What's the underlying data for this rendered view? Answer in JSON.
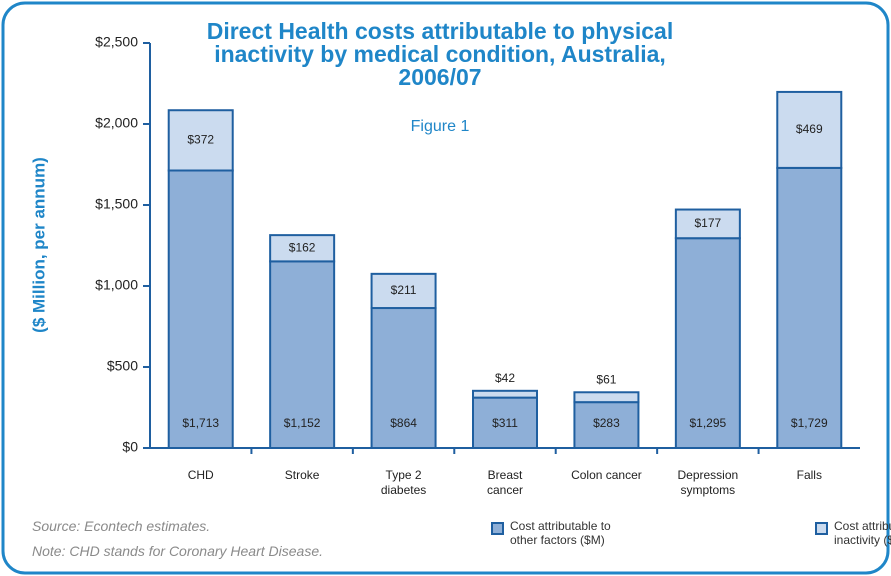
{
  "chart_data": {
    "type": "stacked_bar",
    "title": "Direct Health costs attributable to physical inactivity by medical condition, Australia, 2006/07",
    "subtitle": "Figure 1",
    "y_label": "($ Million, per annum)",
    "categories": [
      "CHD",
      "Stroke",
      "Type 2 diabetes",
      "Breast cancer",
      "Colon cancer",
      "Depression symptoms",
      "Falls"
    ],
    "series": [
      {
        "name": "Cost attributable to other factors ($M)",
        "color": "#8eafd7",
        "values": [
          1713,
          1152,
          864,
          311,
          283,
          1295,
          1729
        ],
        "value_labels": [
          "$1,713",
          "$1,152",
          "$864",
          "$311",
          "$283",
          "$1,295",
          "$1,729"
        ]
      },
      {
        "name": "Cost attributable to inactivity ($M)",
        "color": "#cbdbef",
        "values": [
          372,
          162,
          211,
          42,
          61,
          177,
          469
        ],
        "value_labels": [
          "$372",
          "$162",
          "$211",
          "$42",
          "$61",
          "$177",
          "$469"
        ]
      }
    ],
    "ylim": [
      0,
      2500
    ],
    "yticks": [
      {
        "value": 0,
        "label": "$0"
      },
      {
        "value": 500,
        "label": "$500"
      },
      {
        "value": 1000,
        "label": "$1,000"
      },
      {
        "value": 1500,
        "label": "$1,500"
      },
      {
        "value": 2000,
        "label": "$2,000"
      },
      {
        "value": 2500,
        "label": "$2,500"
      }
    ],
    "source": "Source: Econtech estimates.",
    "note": "Note: CHD stands for Coronary Heart Disease."
  }
}
